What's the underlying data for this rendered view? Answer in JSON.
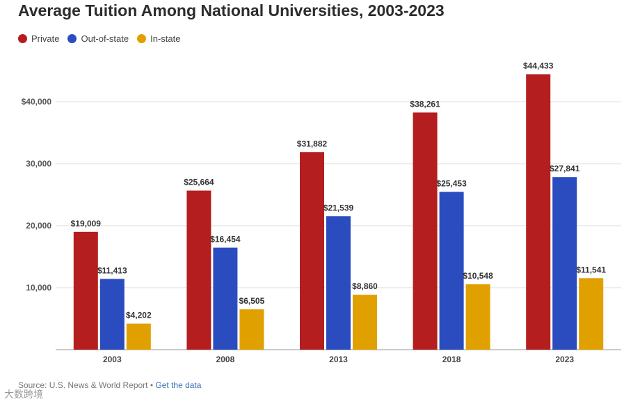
{
  "title": "Average Tuition Among National Universities, 2003-2023",
  "colors": {
    "private": "#b51e1e",
    "out_of_state": "#2a4cbf",
    "in_state": "#e0a100",
    "grid": "#dddddd",
    "text": "#333333"
  },
  "source": {
    "prefix": "Source: U.S. News & World Report",
    "separator": " • ",
    "link": "Get the data"
  },
  "watermark": "大数跨境",
  "chart_data": {
    "type": "bar",
    "title": "Average Tuition Among National Universities, 2003-2023",
    "categories": [
      "2003",
      "2008",
      "2013",
      "2018",
      "2023"
    ],
    "series": [
      {
        "name": "Private",
        "values": [
          19009,
          25664,
          31882,
          38261,
          44433
        ],
        "labels": [
          "$19,009",
          "$25,664",
          "$31,882",
          "$38,261",
          "$44,433"
        ]
      },
      {
        "name": "Out-of-state",
        "values": [
          11413,
          16454,
          21539,
          25453,
          27841
        ],
        "labels": [
          "$11,413",
          "$16,454",
          "$21,539",
          "$25,453",
          "$27,841"
        ]
      },
      {
        "name": "In-state",
        "values": [
          4202,
          6505,
          8860,
          10548,
          11541
        ],
        "labels": [
          "$4,202",
          "$6,505",
          "$8,860",
          "$10,548",
          "$11,541"
        ]
      }
    ],
    "y_ticks": [
      10000,
      20000,
      30000,
      40000
    ],
    "y_tick_labels": [
      "10,000",
      "20,000",
      "30,000",
      "$40,000"
    ],
    "ylim": [
      0,
      45000
    ],
    "grid": true,
    "legend_position": "top-left"
  }
}
